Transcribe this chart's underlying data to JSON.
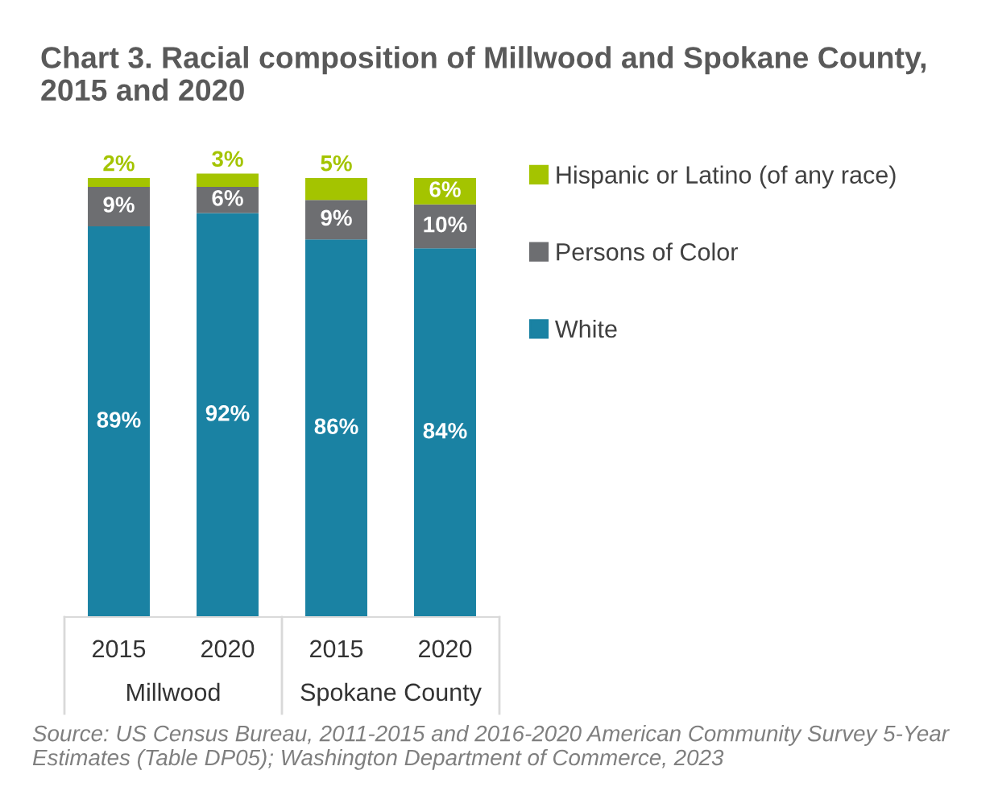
{
  "chart_data": {
    "type": "bar",
    "title": "Chart 3. Racial composition of Millwood and Spokane County, 2015 and 2020",
    "categories": [
      "2015",
      "2020",
      "2015",
      "2020"
    ],
    "stacked": true,
    "series": [
      {
        "name": "White",
        "color": "#1a82a3",
        "values": [
          89,
          92,
          86,
          84
        ],
        "value_labels": [
          "89%",
          "92%",
          "86%",
          "84%"
        ]
      },
      {
        "name": "Persons of Color",
        "color": "#6d6e71",
        "values": [
          9,
          6,
          9,
          10
        ],
        "value_labels": [
          "9%",
          "6%",
          "9%",
          "10%"
        ]
      },
      {
        "name": "Hispanic or Latino (of any race)",
        "color": "#a4c400",
        "values": [
          2,
          3,
          5,
          6
        ],
        "value_labels": [
          "2%",
          "3%",
          "5%",
          "6%"
        ]
      }
    ],
    "legend": "right",
    "tick_labels": "x",
    "grid": false,
    "annotations": [
      "Millwood",
      "Spokane County",
      "Source: US Census Bureau, 2011-2015 and 2016-2020 American Community Survey 5-Year Estimates (Table DP05); Washington Department of Commerce, 2023"
    ]
  }
}
